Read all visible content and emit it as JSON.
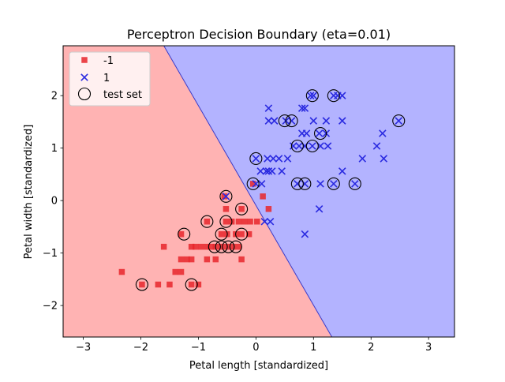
{
  "chart_data": {
    "type": "scatter",
    "title": "Perceptron Decision Boundary (eta=0.01)",
    "xlabel": "Petal length [standardized]",
    "ylabel": "Petal width [standardized]",
    "xlim": [
      -3.35,
      3.45
    ],
    "ylim": [
      -2.6,
      2.95
    ],
    "x_ticks": [
      -3,
      -2,
      -1,
      0,
      1,
      2,
      3
    ],
    "x_tick_labels": [
      "−3",
      "−2",
      "−1",
      "0",
      "1",
      "2",
      "3"
    ],
    "y_ticks": [
      -2,
      -1,
      0,
      1,
      2
    ],
    "y_tick_labels": [
      "−2",
      "−1",
      "0",
      "1",
      "2"
    ],
    "grid": false,
    "legend_position": "top-left",
    "decision_regions": {
      "boundary_points": [
        [
          -1.6,
          2.95
        ],
        [
          1.32,
          -2.6
        ]
      ],
      "left_region_class": "-1",
      "right_region_class": "1",
      "left_color": "#ffb3b3",
      "right_color": "#b3b3ff",
      "boundary_color": "#3b3bc8"
    },
    "series": [
      {
        "name": "-1",
        "marker": "square",
        "color": "#e8262c",
        "points": [
          [
            -2.33,
            -1.36
          ],
          [
            -1.98,
            -1.6
          ],
          [
            -1.7,
            -1.6
          ],
          [
            -1.5,
            -1.6
          ],
          [
            -1.4,
            -1.36
          ],
          [
            -1.3,
            -1.36
          ],
          [
            -1.3,
            -1.12
          ],
          [
            -1.2,
            -1.12
          ],
          [
            -1.12,
            -1.12
          ],
          [
            -1.12,
            -1.6
          ],
          [
            -1.0,
            -1.6
          ],
          [
            -1.6,
            -0.88
          ],
          [
            -1.3,
            -0.64
          ],
          [
            -1.12,
            -0.88
          ],
          [
            -1.05,
            -0.88
          ],
          [
            -0.95,
            -0.88
          ],
          [
            -0.85,
            -0.88
          ],
          [
            -0.78,
            -0.88
          ],
          [
            -0.7,
            -0.88
          ],
          [
            -0.6,
            -0.88
          ],
          [
            -0.5,
            -0.88
          ],
          [
            -0.4,
            -0.88
          ],
          [
            -0.3,
            -0.88
          ],
          [
            -0.85,
            -1.12
          ],
          [
            -0.7,
            -1.12
          ],
          [
            -0.25,
            -1.12
          ],
          [
            -0.6,
            -0.64
          ],
          [
            -0.5,
            -0.64
          ],
          [
            -0.35,
            -0.64
          ],
          [
            -0.25,
            -0.64
          ],
          [
            -0.12,
            -0.64
          ],
          [
            -0.52,
            -0.4
          ],
          [
            -0.42,
            -0.4
          ],
          [
            -0.3,
            -0.4
          ],
          [
            -0.2,
            -0.4
          ],
          [
            -0.1,
            -0.4
          ],
          [
            0.02,
            -0.4
          ],
          [
            -0.52,
            -0.16
          ],
          [
            -0.25,
            -0.16
          ],
          [
            0.12,
            0.08
          ],
          [
            0.22,
            -0.16
          ],
          [
            -0.05,
            0.32
          ],
          [
            -0.85,
            -0.4
          ],
          [
            -0.55,
            0.08
          ]
        ]
      },
      {
        "name": "1",
        "marker": "x",
        "color": "#2a2ae0",
        "points": [
          [
            -0.52,
            0.08
          ],
          [
            0.0,
            0.32
          ],
          [
            0.1,
            0.32
          ],
          [
            0.25,
            -0.4
          ],
          [
            0.15,
            -0.4
          ],
          [
            0.18,
            0.56
          ],
          [
            0.22,
            0.56
          ],
          [
            0.28,
            0.56
          ],
          [
            0.08,
            0.56
          ],
          [
            0.45,
            0.56
          ],
          [
            0.2,
            0.8
          ],
          [
            0.3,
            0.8
          ],
          [
            0.4,
            0.8
          ],
          [
            0.55,
            0.8
          ],
          [
            0.0,
            0.8
          ],
          [
            0.65,
            1.04
          ],
          [
            0.75,
            1.04
          ],
          [
            0.85,
            1.04
          ],
          [
            0.98,
            1.04
          ],
          [
            1.12,
            1.04
          ],
          [
            1.25,
            1.04
          ],
          [
            0.8,
            1.28
          ],
          [
            0.88,
            1.28
          ],
          [
            1.1,
            1.28
          ],
          [
            1.22,
            1.28
          ],
          [
            2.2,
            1.28
          ],
          [
            0.22,
            1.52
          ],
          [
            0.32,
            1.52
          ],
          [
            0.52,
            1.52
          ],
          [
            0.62,
            1.52
          ],
          [
            1.0,
            1.52
          ],
          [
            1.22,
            1.52
          ],
          [
            1.5,
            1.52
          ],
          [
            2.48,
            1.52
          ],
          [
            0.22,
            1.76
          ],
          [
            0.8,
            1.76
          ],
          [
            0.85,
            1.76
          ],
          [
            0.95,
            2.0
          ],
          [
            1.0,
            2.0
          ],
          [
            1.35,
            2.0
          ],
          [
            1.42,
            2.0
          ],
          [
            1.5,
            2.0
          ],
          [
            0.72,
            0.32
          ],
          [
            0.85,
            0.32
          ],
          [
            1.12,
            0.32
          ],
          [
            1.35,
            0.32
          ],
          [
            1.72,
            0.32
          ],
          [
            1.1,
            -0.16
          ],
          [
            0.85,
            -0.64
          ],
          [
            1.5,
            0.56
          ],
          [
            1.85,
            0.8
          ],
          [
            2.22,
            0.8
          ],
          [
            2.1,
            1.04
          ]
        ]
      },
      {
        "name": "test set",
        "marker": "circle-open",
        "color": "#000000",
        "points": [
          [
            -1.98,
            -1.6
          ],
          [
            -1.12,
            -1.6
          ],
          [
            -1.25,
            -0.64
          ],
          [
            -0.85,
            -0.4
          ],
          [
            -0.52,
            -0.4
          ],
          [
            -0.25,
            -0.16
          ],
          [
            -0.6,
            -0.64
          ],
          [
            -0.25,
            -0.64
          ],
          [
            -0.72,
            -0.88
          ],
          [
            -0.6,
            -0.88
          ],
          [
            -0.48,
            -0.88
          ],
          [
            -0.35,
            -0.88
          ],
          [
            -0.52,
            0.08
          ],
          [
            -0.05,
            0.32
          ],
          [
            0.0,
            0.8
          ],
          [
            0.5,
            1.52
          ],
          [
            0.62,
            1.52
          ],
          [
            0.72,
            1.04
          ],
          [
            0.98,
            1.04
          ],
          [
            1.12,
            1.28
          ],
          [
            0.98,
            2.0
          ],
          [
            1.35,
            2.0
          ],
          [
            2.48,
            1.52
          ],
          [
            0.72,
            0.32
          ],
          [
            0.85,
            0.32
          ],
          [
            1.35,
            0.32
          ],
          [
            1.72,
            0.32
          ]
        ]
      }
    ]
  }
}
